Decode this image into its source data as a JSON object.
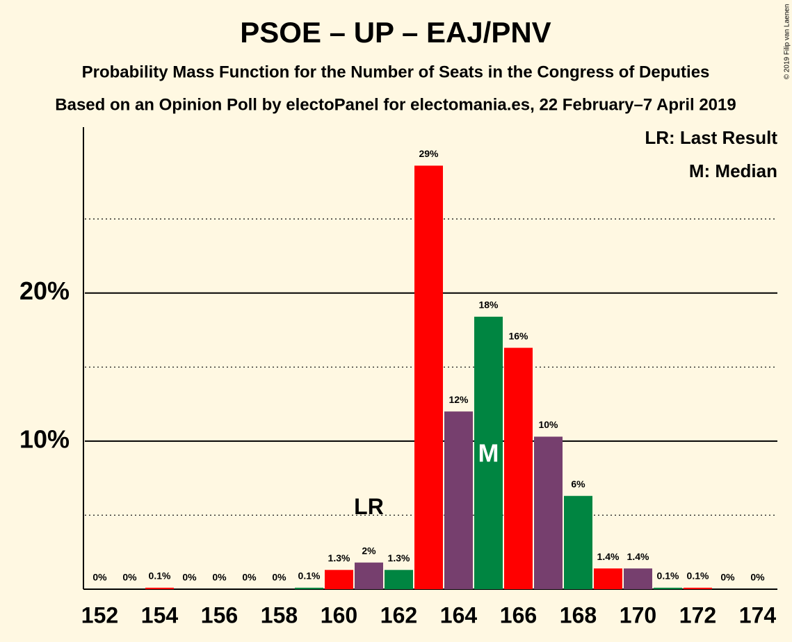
{
  "chart_data": {
    "type": "bar",
    "title": "PSOE – UP – EAJ/PNV",
    "subtitle": "Probability Mass Function for the Number of Seats in the Congress of Deputies",
    "source": "Based on an Opinion Poll by electoPanel for electomania.es, 22 February–7 April 2019",
    "copyright": "© 2019 Filip van Laenen",
    "categories": [
      "152",
      null,
      "154",
      null,
      "156",
      null,
      "158",
      null,
      "160",
      null,
      "162",
      null,
      "164",
      null,
      "166",
      null,
      "168",
      null,
      "170",
      null,
      "172",
      null,
      "174"
    ],
    "values": [
      0,
      0,
      0.1,
      0,
      0,
      0,
      0,
      0.1,
      1.3,
      1.8,
      1.3,
      28.6,
      12.0,
      18.4,
      16.3,
      10.3,
      6.3,
      1.4,
      1.4,
      0.1,
      0.1,
      0,
      0
    ],
    "value_labels": [
      "0%",
      "0%",
      "0.1%",
      "0%",
      "0%",
      "0%",
      "0%",
      "0.1%",
      "1.3%",
      "2%",
      "1.3%",
      "29%",
      "12%",
      "18%",
      "16%",
      "10%",
      "6%",
      "1.4%",
      "1.4%",
      "0.1%",
      "0.1%",
      "0%",
      "0%"
    ],
    "colors": [
      "#763F6E",
      "#008541",
      "#FF0000"
    ],
    "ylim": [
      0,
      31.2
    ],
    "yticks": [
      {
        "value": 10,
        "label": "10%"
      },
      {
        "value": 20,
        "label": "20%"
      }
    ],
    "minor_yticks": [
      5,
      15,
      25
    ],
    "annotations": [
      {
        "text": "LR",
        "index": 9
      },
      {
        "text": "M",
        "index": 13
      }
    ],
    "legend": [
      "LR: Last Result",
      "M: Median"
    ]
  }
}
